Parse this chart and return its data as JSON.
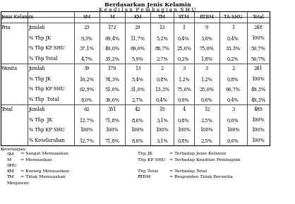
{
  "title": "Berdasarkan Jenis Kelamin",
  "subtitle": "K e a d i l a n  P e m b a g i a n  S H U",
  "col_headers": [
    "SM",
    "M",
    "KM",
    "TM",
    "STM",
    "RTBM",
    "TA SHU",
    "Total"
  ],
  "rows": [
    [
      "Pria",
      "Jumlah",
      "23",
      "172",
      "29",
      "13",
      "1",
      "9",
      "1",
      "248"
    ],
    [
      "",
      "% Thp JK",
      "9,3%",
      "69,4%",
      "11,7%",
      "5,2%",
      "0,4%",
      "3,6%",
      "0,4%",
      "100%"
    ],
    [
      "",
      "% Thp KP SHU",
      "37,1%",
      "49,0%",
      "69,0%",
      "86,7%",
      "25,0%",
      "75,0%",
      "33,3%",
      "50,7%"
    ],
    [
      "",
      "% Thp Total",
      "4,7%",
      "35,2%",
      "5,9%",
      "2,7%",
      "0,2%",
      "1,8%",
      "0,2%",
      "50,7%"
    ],
    [
      "Wanita",
      "Jumlah",
      "39",
      "179",
      "13",
      "2",
      "3",
      "3",
      "2",
      "241"
    ],
    [
      "",
      "% Thp JK",
      "16,2%",
      "74,3%",
      "5,4%",
      "0,8%",
      "1,2%",
      "1,2%",
      "0,8%",
      "100%"
    ],
    [
      "",
      "% Thp KP SHU",
      "62,9%",
      "51,0%",
      "31,0%",
      "13,3%",
      "75,0%",
      "25,0%",
      "66,7%",
      "49,3%"
    ],
    [
      "",
      "% Thp  Total",
      "8,0%",
      "36,6%",
      "2,7%",
      "0,4%",
      "0,6%",
      "0,6%",
      "0,4%",
      "49,3%"
    ],
    [
      "Total",
      "Jumlah",
      "62",
      "351",
      "42",
      "15",
      "4",
      "12",
      "3",
      "489"
    ],
    [
      "",
      "% Thp  JK",
      "12,7%",
      "71,8%",
      "8,6%",
      "3,1%",
      "0,8%",
      "2,5%",
      "0,6%",
      "100%"
    ],
    [
      "",
      "% Thp KP SHU",
      "100%",
      "100%",
      "100%",
      "100%",
      "100%",
      "100%",
      "100%",
      "100%"
    ],
    [
      "",
      "% Keseluruhan",
      "12,7%",
      "71,8%",
      "8,6%",
      "3,1%",
      "0,8%",
      "2,5%",
      "0,6%",
      "100%"
    ]
  ],
  "legend": [
    [
      "SM",
      "= Sangat Memuaskan",
      "Thp JK",
      "= Terhadap Jenis Kelamin"
    ],
    [
      "M",
      "= Memuaskan",
      "Thp KP SHU",
      "= Terhadap Keadilan Pembagian"
    ],
    [
      "SHU",
      "",
      "",
      ""
    ],
    [
      "KM",
      "= Kurang Memuaskan",
      "Thp Total",
      "= Terhadap Total"
    ],
    [
      "TM",
      "= Tidak Memuaskan",
      "RTBM",
      "= Responden Tidak Bersedia"
    ],
    [
      "Menjawab",
      "",
      "",
      ""
    ]
  ],
  "fs": 4.8,
  "title_fs": 5.8
}
